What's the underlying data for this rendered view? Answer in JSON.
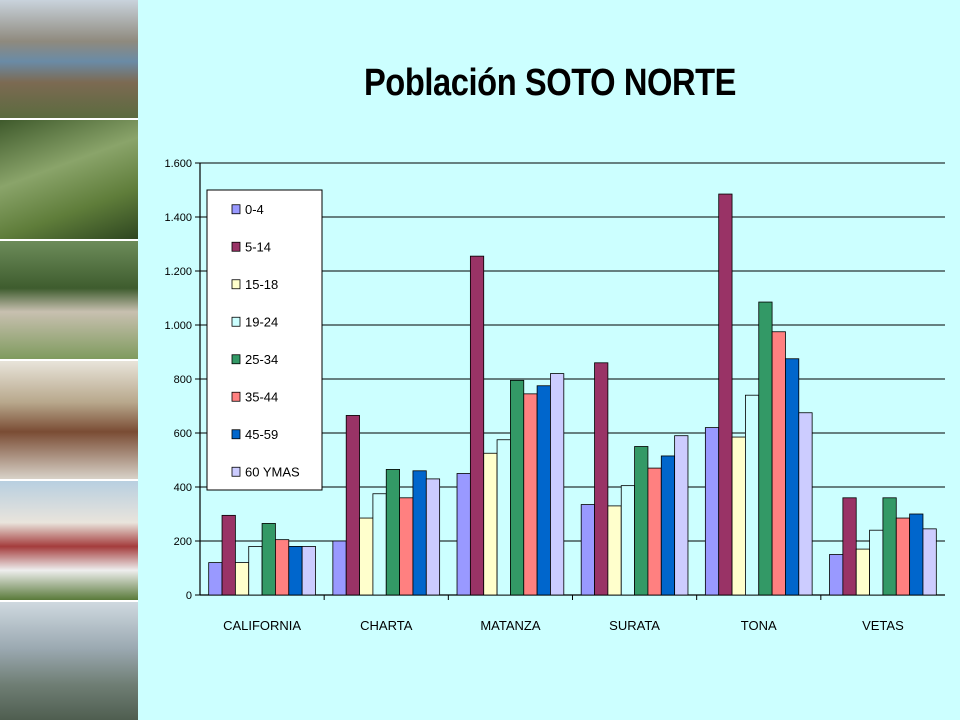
{
  "slide": {
    "title": "Población SOTO NORTE",
    "photos": [
      "landscape-lake-photo",
      "pasture-photo",
      "valley-town-photo",
      "colonial-street-photo",
      "church-photo",
      "mountains-photo"
    ]
  },
  "chart_data": {
    "type": "bar",
    "title": "",
    "xlabel": "",
    "ylabel": "",
    "ylim": [
      0,
      1600
    ],
    "yticks": [
      0,
      200,
      400,
      600,
      800,
      1000,
      1200,
      1400,
      1600
    ],
    "ytick_labels": [
      "0",
      "200",
      "400",
      "600",
      "800",
      "1.000",
      "1.200",
      "1.400",
      "1.600"
    ],
    "grid": true,
    "legend_position": "top-left",
    "categories": [
      "CALIFORNIA",
      "CHARTA",
      "MATANZA",
      "SURATA",
      "TONA",
      "VETAS"
    ],
    "series": [
      {
        "name": "0-4",
        "color": "#9999ff",
        "values": [
          120,
          200,
          450,
          335,
          620,
          150
        ]
      },
      {
        "name": "5-14",
        "color": "#993366",
        "values": [
          295,
          665,
          1255,
          860,
          1485,
          360
        ]
      },
      {
        "name": "15-18",
        "color": "#ffffcc",
        "values": [
          120,
          285,
          525,
          330,
          585,
          170
        ]
      },
      {
        "name": "19-24",
        "color": "#ccffff",
        "values": [
          180,
          375,
          575,
          405,
          740,
          240
        ]
      },
      {
        "name": "25-34",
        "color": "#339966",
        "values": [
          265,
          465,
          795,
          550,
          1085,
          360
        ]
      },
      {
        "name": "35-44",
        "color": "#ff8080",
        "values": [
          205,
          360,
          745,
          470,
          975,
          285
        ]
      },
      {
        "name": "45-59",
        "color": "#0066cc",
        "values": [
          180,
          460,
          775,
          515,
          875,
          300
        ]
      },
      {
        "name": "60 YMAS",
        "color": "#ccccff",
        "values": [
          180,
          430,
          820,
          590,
          675,
          245
        ]
      }
    ]
  }
}
